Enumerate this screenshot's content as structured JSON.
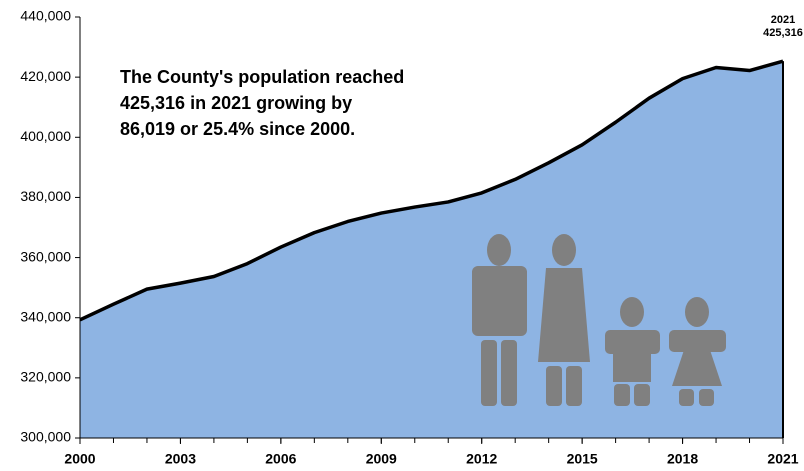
{
  "chart_data": {
    "type": "area",
    "annotation": [
      "The County's population reached",
      "425,316 in 2021 growing by",
      "86,019 or 25.4% since 2000."
    ],
    "x": [
      2000,
      2001,
      2002,
      2003,
      2004,
      2005,
      2006,
      2007,
      2008,
      2009,
      2010,
      2011,
      2012,
      2013,
      2014,
      2015,
      2016,
      2017,
      2018,
      2019,
      2020,
      2021
    ],
    "values": [
      339297,
      344500,
      349500,
      351500,
      353700,
      358000,
      363500,
      368300,
      372000,
      374800,
      376800,
      378500,
      381500,
      386000,
      391500,
      397500,
      405000,
      413000,
      419500,
      423200,
      422200,
      425316
    ],
    "value_labels": [
      null,
      null,
      null,
      null,
      null,
      null,
      null,
      null,
      null,
      null,
      null,
      null,
      null,
      null,
      null,
      null,
      null,
      null,
      null,
      null,
      null,
      "425,316"
    ],
    "point_label": "2021",
    "color": "#8eb4e3",
    "line_color": "#000000",
    "xlim": [
      2000,
      2021
    ],
    "xticks": [
      2000,
      2003,
      2006,
      2009,
      2012,
      2015,
      2018,
      2021
    ],
    "ylim": [
      300000,
      440000
    ],
    "yticks": [
      {
        "value": 300000,
        "label": "300,000"
      },
      {
        "value": 320000,
        "label": "320,000"
      },
      {
        "value": 340000,
        "label": "340,000"
      },
      {
        "value": 360000,
        "label": "360,000"
      },
      {
        "value": 380000,
        "label": "380,000"
      },
      {
        "value": 400000,
        "label": "400,000"
      },
      {
        "value": 420000,
        "label": "420,000"
      },
      {
        "value": 440000,
        "label": "440,000"
      }
    ]
  }
}
